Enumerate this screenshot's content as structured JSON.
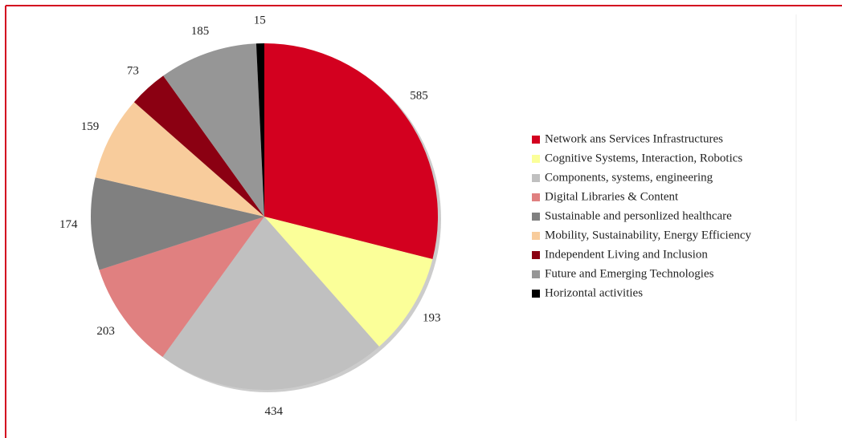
{
  "chart_data": {
    "type": "pie",
    "categories": [
      "Network ans Services Infrastructures",
      "Cognitive Systems, Interaction, Robotics",
      "Components, systems, engineering",
      "Digital Libraries & Content",
      "Sustainable and personlized healthcare",
      "Mobility, Sustainability, Energy Efficiency",
      "Independent Living and Inclusion",
      "Future and Emerging Technologies",
      "Horizontal activities"
    ],
    "values": [
      585,
      193,
      434,
      203,
      174,
      159,
      73,
      185,
      15
    ],
    "colors": [
      "#d3001f",
      "#fbff99",
      "#c0c0c0",
      "#e08080",
      "#808080",
      "#f8cc9c",
      "#8b0012",
      "#969696",
      "#000000"
    ],
    "legend": "right"
  }
}
